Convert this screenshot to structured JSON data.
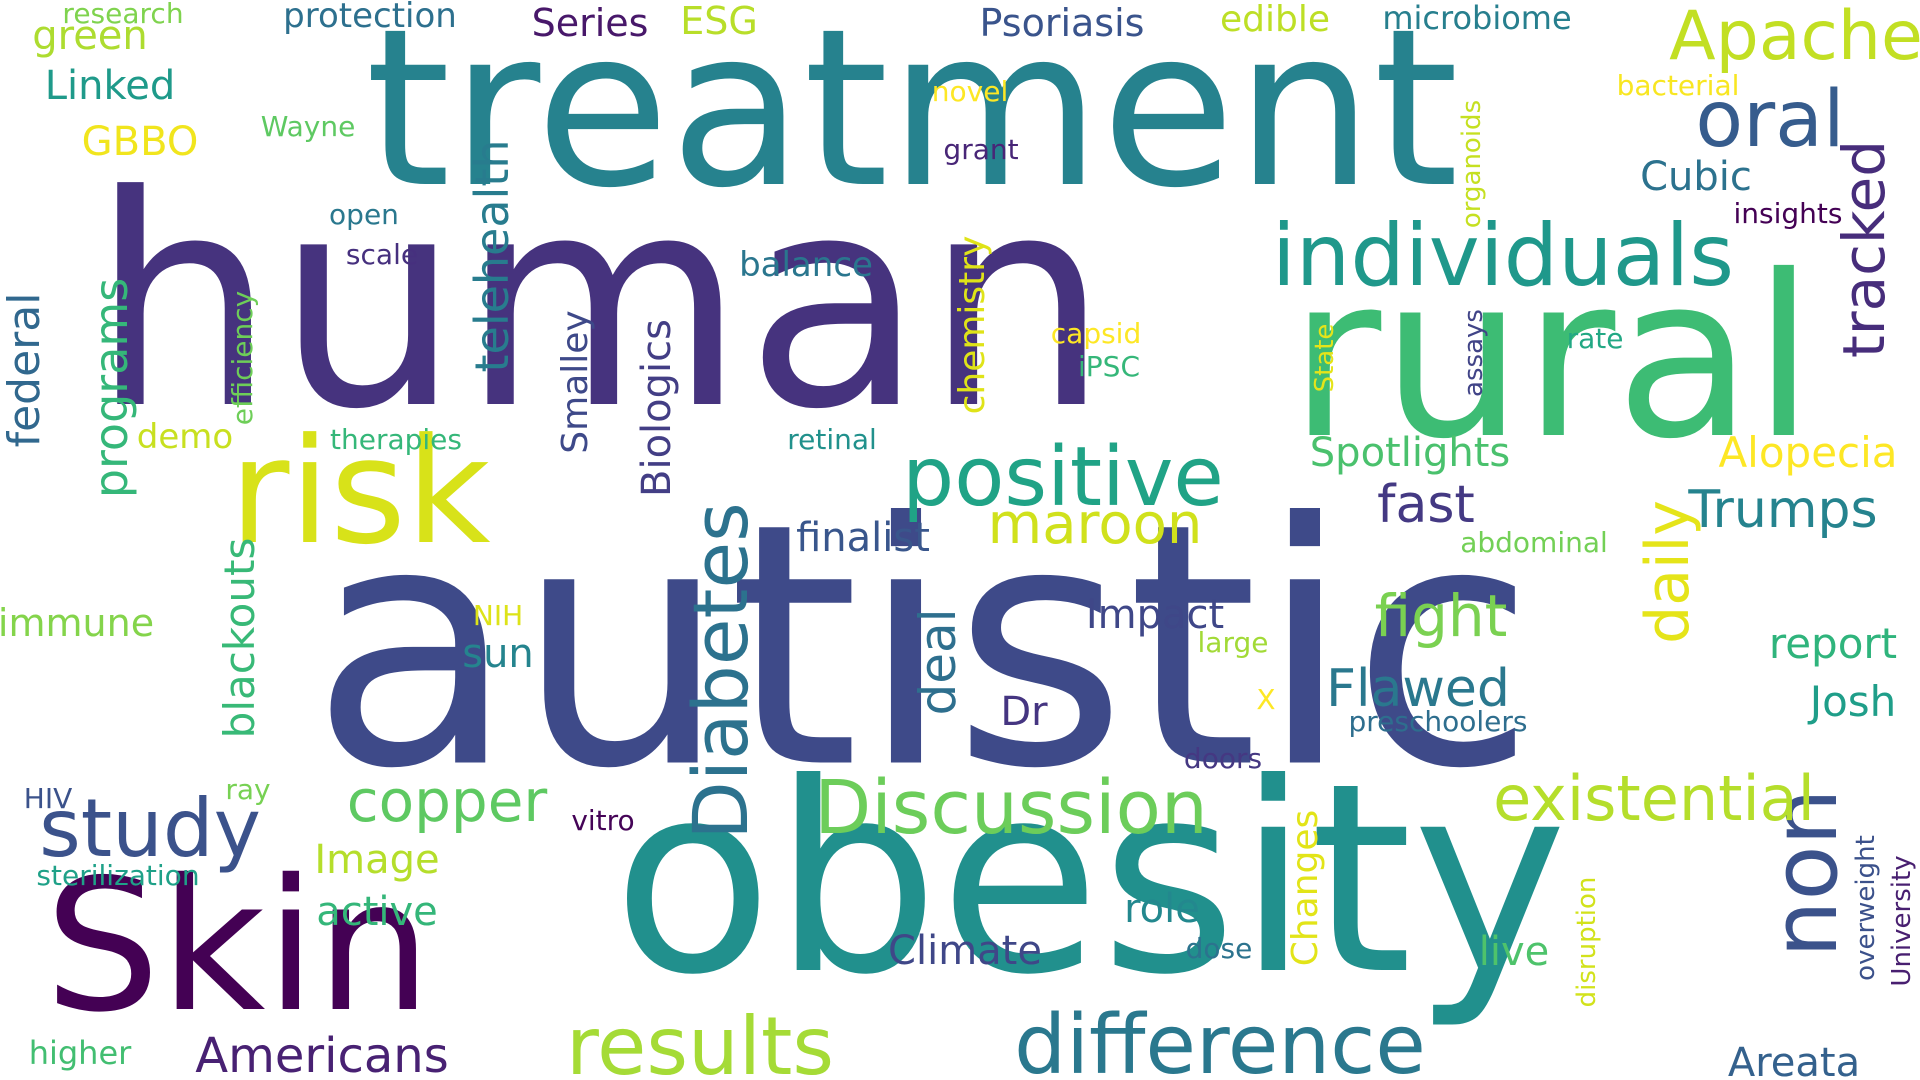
{
  "words": [
    {
      "text": "autistic",
      "color": "#3e4a89"
    },
    {
      "text": "human",
      "color": "#46337e"
    },
    {
      "text": "treatment",
      "color": "#26828e"
    },
    {
      "text": "obesity",
      "color": "#21908d"
    },
    {
      "text": "rural",
      "color": "#3dbc74"
    },
    {
      "text": "Skin",
      "color": "#440154"
    },
    {
      "text": "risk",
      "color": "#d8e219"
    },
    {
      "text": "individuals",
      "color": "#1f988b"
    },
    {
      "text": "positive",
      "color": "#20a386"
    },
    {
      "text": "oral",
      "color": "#365c8d"
    },
    {
      "text": "Apache",
      "color": "#c2df23"
    },
    {
      "text": "tracked",
      "color": "#472d7b"
    },
    {
      "text": "non",
      "color": "#3b528b"
    },
    {
      "text": "difference",
      "color": "#2a788e"
    },
    {
      "text": "results",
      "color": "#a5db36"
    },
    {
      "text": "Discussion",
      "color": "#6ccd5a"
    },
    {
      "text": "existential",
      "color": "#b5de2b"
    },
    {
      "text": "study",
      "color": "#3b528b"
    },
    {
      "text": "Diabetes",
      "color": "#2c728e"
    },
    {
      "text": "Americans",
      "color": "#482173"
    },
    {
      "text": "copper",
      "color": "#5ec962"
    },
    {
      "text": "maroon",
      "color": "#d0e11c"
    },
    {
      "text": "fight",
      "color": "#7ad151"
    },
    {
      "text": "Flawed",
      "color": "#2a788e"
    },
    {
      "text": "daily",
      "color": "#e5e419"
    },
    {
      "text": "fast",
      "color": "#443983"
    },
    {
      "text": "Trumps",
      "color": "#25838e"
    },
    {
      "text": "telehealth",
      "color": "#287c8e"
    },
    {
      "text": "programs",
      "color": "#35b779"
    },
    {
      "text": "federal",
      "color": "#31688e"
    },
    {
      "text": "blackouts",
      "color": "#38b977"
    },
    {
      "text": "deal",
      "color": "#2e6f8e"
    },
    {
      "text": "Biologics",
      "color": "#433e85"
    },
    {
      "text": "Smalley",
      "color": "#3e4989"
    },
    {
      "text": "chemistry",
      "color": "#dfe318"
    },
    {
      "text": "Spotlights",
      "color": "#4ac16d"
    },
    {
      "text": "Alopecia",
      "color": "#fde725"
    },
    {
      "text": "Psoriasis",
      "color": "#3a548c"
    },
    {
      "text": "Series",
      "color": "#48186a"
    },
    {
      "text": "ESG",
      "color": "#b8de29"
    },
    {
      "text": "edible",
      "color": "#bddf26"
    },
    {
      "text": "microbiome",
      "color": "#277f8e"
    },
    {
      "text": "protection",
      "color": "#2d708e"
    },
    {
      "text": "research",
      "color": "#7fd34e"
    },
    {
      "text": "green",
      "color": "#addc30"
    },
    {
      "text": "Linked",
      "color": "#1f9a8a"
    },
    {
      "text": "GBBO",
      "color": "#f1e51d"
    },
    {
      "text": "Wayne",
      "color": "#5ec962"
    },
    {
      "text": "novel",
      "color": "#fde725"
    },
    {
      "text": "grant",
      "color": "#482677"
    },
    {
      "text": "bacterial",
      "color": "#f8e621"
    },
    {
      "text": "Cubic",
      "color": "#2c728e"
    },
    {
      "text": "insights",
      "color": "#440154"
    },
    {
      "text": "organoids",
      "color": "#c5e021"
    },
    {
      "text": "balance",
      "color": "#2a768e"
    },
    {
      "text": "open",
      "color": "#2a788e"
    },
    {
      "text": "scale",
      "color": "#46307e"
    },
    {
      "text": "efficiency",
      "color": "#6ece58"
    },
    {
      "text": "capsid",
      "color": "#fde725"
    },
    {
      "text": "iPSC",
      "color": "#35b779"
    },
    {
      "text": "State",
      "color": "#e5e419"
    },
    {
      "text": "assays",
      "color": "#414487"
    },
    {
      "text": "rate",
      "color": "#22a884"
    },
    {
      "text": "demo",
      "color": "#c8e020"
    },
    {
      "text": "therapies",
      "color": "#35b779"
    },
    {
      "text": "retinal",
      "color": "#21918c"
    },
    {
      "text": "finalist",
      "color": "#39568c"
    },
    {
      "text": "abdominal",
      "color": "#73d056"
    },
    {
      "text": "report",
      "color": "#2fb47c"
    },
    {
      "text": "Josh",
      "color": "#1f9e89"
    },
    {
      "text": "Impact",
      "color": "#3f4788"
    },
    {
      "text": "large",
      "color": "#a2da37"
    },
    {
      "text": "preschoolers",
      "color": "#2e6e8e"
    },
    {
      "text": "X",
      "color": "#fde725"
    },
    {
      "text": "Dr",
      "color": "#453581"
    },
    {
      "text": "sun",
      "color": "#25848e"
    },
    {
      "text": "NIH",
      "color": "#dde318"
    },
    {
      "text": "immune",
      "color": "#84d44b"
    },
    {
      "text": "HIV",
      "color": "#3b528b"
    },
    {
      "text": "ray",
      "color": "#77d153"
    },
    {
      "text": "vitro",
      "color": "#450457"
    },
    {
      "text": "sterilization",
      "color": "#1fa188"
    },
    {
      "text": "Image",
      "color": "#b5de2b"
    },
    {
      "text": "active",
      "color": "#34b679"
    },
    {
      "text": "role",
      "color": "#23888e"
    },
    {
      "text": "Climate",
      "color": "#3f4788"
    },
    {
      "text": "doors",
      "color": "#453882"
    },
    {
      "text": "dose",
      "color": "#2c738e"
    },
    {
      "text": "Changes",
      "color": "#e2e418"
    },
    {
      "text": "live",
      "color": "#4ec36b"
    },
    {
      "text": "disruption",
      "color": "#d2e21b"
    },
    {
      "text": "overweight",
      "color": "#3b518b"
    },
    {
      "text": "University",
      "color": "#481f70"
    },
    {
      "text": "higher",
      "color": "#42be71"
    },
    {
      "text": "Areata",
      "color": "#34618d"
    }
  ]
}
